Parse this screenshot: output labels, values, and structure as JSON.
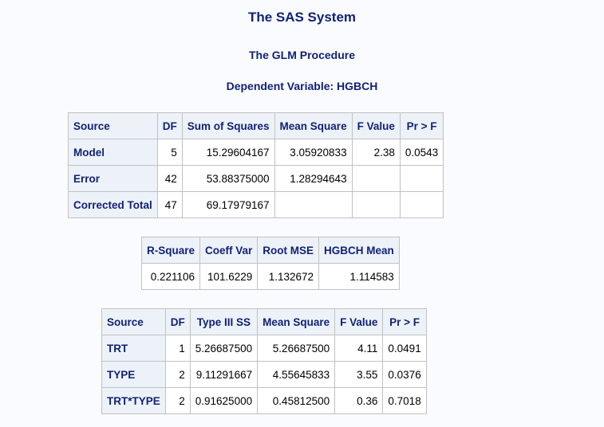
{
  "titles": {
    "system": "The SAS System",
    "procedure": "The GLM Procedure",
    "dependent": "Dependent Variable: HGBCH"
  },
  "anova": {
    "headers": [
      "Source",
      "DF",
      "Sum of Squares",
      "Mean Square",
      "F Value",
      "Pr > F"
    ],
    "rows": [
      {
        "source": "Model",
        "df": "5",
        "ss": "15.29604167",
        "ms": "3.05920833",
        "f": "2.38",
        "p": "0.0543"
      },
      {
        "source": "Error",
        "df": "42",
        "ss": "53.88375000",
        "ms": "1.28294643",
        "f": "",
        "p": ""
      },
      {
        "source": "Corrected Total",
        "df": "47",
        "ss": "69.17979167",
        "ms": "",
        "f": "",
        "p": ""
      }
    ]
  },
  "fit": {
    "headers": [
      "R-Square",
      "Coeff Var",
      "Root MSE",
      "HGBCH Mean"
    ],
    "values": [
      "0.221106",
      "101.6229",
      "1.132672",
      "1.114583"
    ]
  },
  "type3": {
    "headers": [
      "Source",
      "DF",
      "Type III SS",
      "Mean Square",
      "F Value",
      "Pr > F"
    ],
    "rows": [
      {
        "source": "TRT",
        "df": "1",
        "ss": "5.26687500",
        "ms": "5.26687500",
        "f": "4.11",
        "p": "0.0491"
      },
      {
        "source": "TYPE",
        "df": "2",
        "ss": "9.11291667",
        "ms": "4.55645833",
        "f": "3.55",
        "p": "0.0376"
      },
      {
        "source": "TRT*TYPE",
        "df": "2",
        "ss": "0.91625000",
        "ms": "0.45812500",
        "f": "0.36",
        "p": "0.7018"
      }
    ]
  },
  "colors": {
    "header_text": "#112277",
    "header_bg": "#edf2f9",
    "border": "#c1c1c1",
    "page_bg": "#fafbfe"
  }
}
